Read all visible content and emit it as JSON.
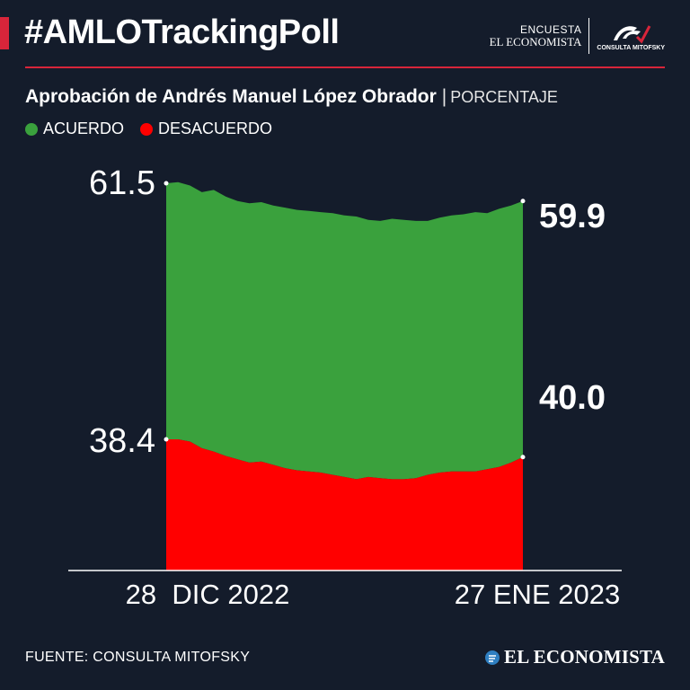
{
  "header": {
    "hashtag": "#AMLOTrackingPoll",
    "survey_label": "ENCUESTA",
    "publisher": "EL ECONOMISTA",
    "partner": "CONSULTA MITOFSKY"
  },
  "subtitle": {
    "title": "Aprobación de Andrés Manuel López Obrador",
    "separator": "|",
    "unit": "PORCENTAJE"
  },
  "colors": {
    "background": "#141c2b",
    "accent": "#d8253a",
    "acuerdo": "#3aa13d",
    "desacuerdo": "#ff0000"
  },
  "chart_data": {
    "type": "area",
    "legend": [
      "ACUERDO",
      "DESACUERDO"
    ],
    "legend_position": "top-left",
    "x_start_label": "28  DIC 2022",
    "x_end_label": "27 ENE 2023",
    "x": [
      "2022-12-28",
      "2022-12-29",
      "2022-12-30",
      "2022-12-31",
      "2023-01-01",
      "2023-01-02",
      "2023-01-03",
      "2023-01-04",
      "2023-01-05",
      "2023-01-06",
      "2023-01-07",
      "2023-01-08",
      "2023-01-09",
      "2023-01-10",
      "2023-01-11",
      "2023-01-12",
      "2023-01-13",
      "2023-01-14",
      "2023-01-15",
      "2023-01-16",
      "2023-01-17",
      "2023-01-18",
      "2023-01-19",
      "2023-01-20",
      "2023-01-21",
      "2023-01-22",
      "2023-01-23",
      "2023-01-24",
      "2023-01-25",
      "2023-01-26",
      "2023-01-27"
    ],
    "series": [
      {
        "name": "ACUERDO",
        "values": [
          61.5,
          61.6,
          61.3,
          60.7,
          60.9,
          60.3,
          59.9,
          59.7,
          59.8,
          59.5,
          59.3,
          59.1,
          59.0,
          58.9,
          58.8,
          58.6,
          58.5,
          58.2,
          58.1,
          58.3,
          58.2,
          58.1,
          58.1,
          58.4,
          58.6,
          58.7,
          58.9,
          58.8,
          59.2,
          59.5,
          59.9
        ]
      },
      {
        "name": "DESACUERDO",
        "values": [
          38.4,
          38.4,
          38.6,
          39.2,
          39.5,
          39.9,
          40.2,
          40.5,
          40.4,
          40.7,
          41.0,
          41.2,
          41.3,
          41.4,
          41.6,
          41.8,
          42.0,
          41.8,
          41.9,
          42.0,
          42.0,
          41.9,
          41.6,
          41.4,
          41.3,
          41.3,
          41.3,
          41.1,
          40.9,
          40.5,
          40.0
        ]
      }
    ],
    "start_labels": [
      "61.5",
      "38.4"
    ],
    "end_labels": [
      "59.9",
      "40.0"
    ],
    "ylim": [
      38.4,
      61.5
    ],
    "grid": false
  },
  "footer": {
    "source": "FUENTE: CONSULTA MITOFSKY",
    "logo": "EL ECONOMISTA"
  }
}
